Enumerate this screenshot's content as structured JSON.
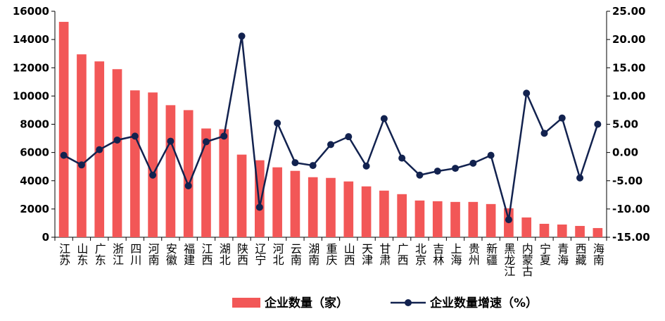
{
  "chart_data": {
    "type": "bar-line",
    "categories": [
      "江苏",
      "山东",
      "广东",
      "浙江",
      "四川",
      "河南",
      "安徽",
      "福建",
      "江西",
      "湖北",
      "陕西",
      "辽宁",
      "河北",
      "云南",
      "湖南",
      "重庆",
      "山西",
      "天津",
      "甘肃",
      "广西",
      "北京",
      "吉林",
      "上海",
      "贵州",
      "新疆",
      "黑龙江",
      "内蒙古",
      "宁夏",
      "青海",
      "西藏",
      "海南"
    ],
    "series": [
      {
        "name": "企业数量（家）",
        "type": "bar",
        "color": "#f25757",
        "values": [
          15250,
          12950,
          12450,
          11900,
          10400,
          10250,
          9350,
          9000,
          7700,
          7650,
          5850,
          5450,
          4950,
          4700,
          4250,
          4200,
          3950,
          3600,
          3300,
          3050,
          2600,
          2550,
          2500,
          2500,
          2350,
          2050,
          1400,
          950,
          900,
          800,
          650
        ]
      },
      {
        "name": "企业数量增速（%）",
        "type": "line",
        "axis": "y2",
        "color": "#12224f",
        "values": [
          -0.5,
          -2.2,
          0.5,
          2.2,
          2.9,
          -4.0,
          2.0,
          -5.9,
          1.9,
          2.9,
          20.6,
          -9.7,
          5.2,
          -1.8,
          -2.3,
          1.4,
          2.8,
          -2.4,
          6.0,
          -1.0,
          -4.0,
          -3.3,
          -2.8,
          -1.9,
          -0.5,
          -11.9,
          10.5,
          3.4,
          6.1,
          -4.5,
          5.0
        ]
      }
    ],
    "ylim": [
      0,
      16000
    ],
    "yticks": [
      0,
      2000,
      4000,
      6000,
      8000,
      10000,
      12000,
      14000,
      16000
    ],
    "y2lim": [
      -15,
      25
    ],
    "y2ticks": [
      {
        "value": -15,
        "label": "-15.00"
      },
      {
        "value": -10,
        "label": "-10.00"
      },
      {
        "value": -5,
        "label": "-5.00"
      },
      {
        "value": 0,
        "label": "0.00"
      },
      {
        "value": 5,
        "label": "5.00"
      },
      {
        "value": 10,
        "label": "10.00"
      },
      {
        "value": 15,
        "label": "15.00"
      },
      {
        "value": 20,
        "label": "20.00"
      },
      {
        "value": 25,
        "label": "25.00"
      }
    ],
    "legend": "bottom"
  }
}
